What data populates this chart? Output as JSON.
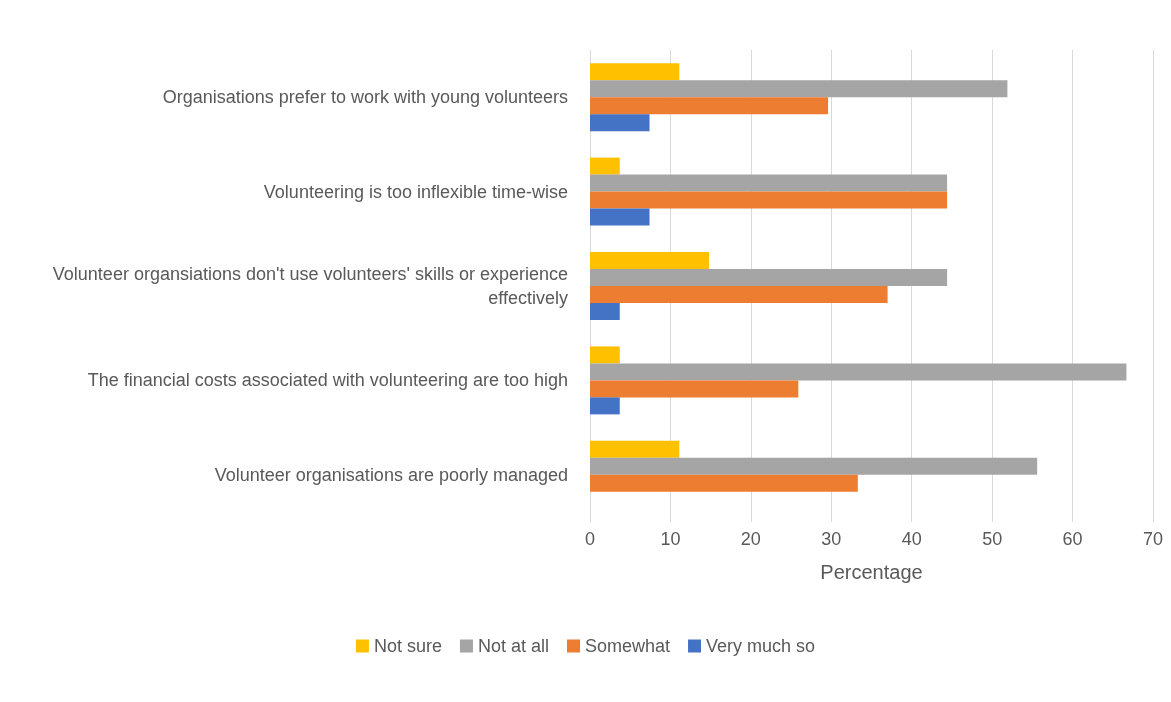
{
  "chart_data": {
    "type": "bar",
    "orientation": "horizontal",
    "xlabel": "Percentage",
    "categories": [
      "Organisations prefer to work with young volunteers",
      "Volunteering is too inflexible time-wise",
      "Volunteer organsiations don't use volunteers' skills or experience effectively",
      "The financial costs associated with volunteering are too high",
      "Volunteer organisations are poorly managed"
    ],
    "series": [
      {
        "name": "Not sure",
        "color": "#ffc000",
        "values": [
          11.1,
          3.7,
          14.8,
          3.7,
          11.1
        ]
      },
      {
        "name": "Not at all",
        "color": "#a5a5a5",
        "values": [
          51.9,
          44.4,
          44.4,
          66.7,
          55.6
        ]
      },
      {
        "name": "Somewhat",
        "color": "#ed7d31",
        "values": [
          29.6,
          44.4,
          37.0,
          25.9,
          33.3
        ]
      },
      {
        "name": "Very much so",
        "color": "#4472c4",
        "values": [
          7.4,
          7.4,
          3.7,
          3.7,
          0
        ]
      }
    ],
    "xlim": [
      0,
      70
    ],
    "xticks": [
      0,
      10,
      20,
      30,
      40,
      50,
      60,
      70
    ],
    "grid": "x",
    "legend": "bottom"
  }
}
